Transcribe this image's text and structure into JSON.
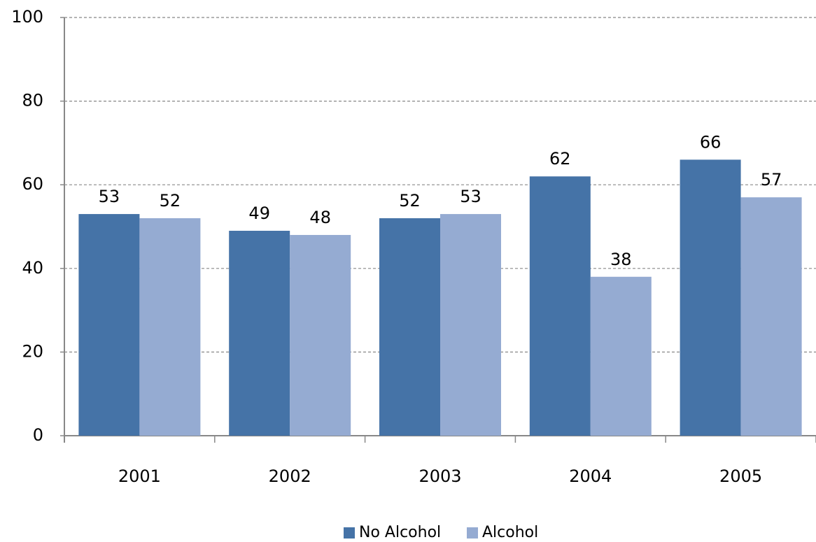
{
  "chart_data": {
    "type": "bar",
    "categories": [
      "2001",
      "2002",
      "2003",
      "2004",
      "2005"
    ],
    "series": [
      {
        "name": "No Alcohol",
        "color": "#4573a7",
        "values": [
          53,
          49,
          52,
          62,
          66
        ]
      },
      {
        "name": "Alcohol",
        "color": "#95abd2",
        "values": [
          52,
          48,
          53,
          38,
          57
        ]
      }
    ],
    "ylim": [
      0,
      100
    ],
    "yticks": [
      0,
      20,
      40,
      60,
      80,
      100
    ],
    "grid": true,
    "legend": "bottom"
  }
}
